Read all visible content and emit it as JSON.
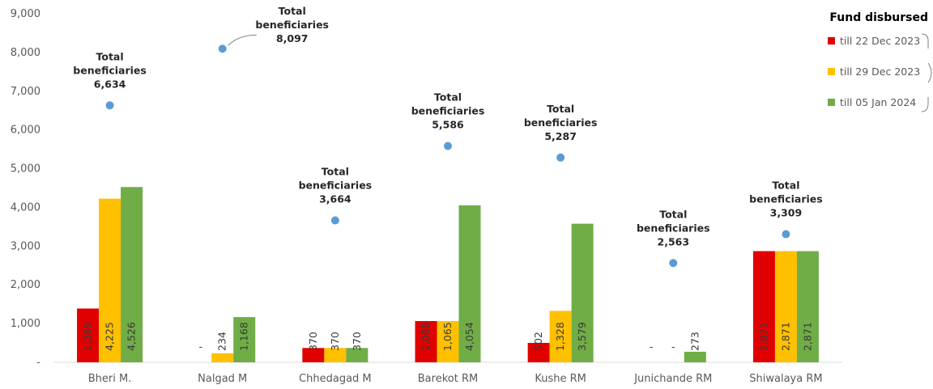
{
  "chart_data": {
    "type": "bar",
    "categories": [
      "Bheri M.",
      "Nalgad M",
      "Chhedagad M",
      "Barekot RM",
      "Kushe RM",
      "Junichande RM",
      "Shiwalaya RM"
    ],
    "series": [
      {
        "name": "till 22 Dec 2023",
        "color": "#e00000",
        "values": [
          1389,
          null,
          370,
          1065,
          502,
          null,
          2871
        ],
        "labels": [
          "1,389",
          "-",
          "370",
          "1,065",
          "502",
          "-",
          "2,871"
        ]
      },
      {
        "name": "till 29 Dec 2023",
        "color": "#ffc000",
        "values": [
          4225,
          234,
          370,
          1065,
          1328,
          null,
          2871
        ],
        "labels": [
          "4,225",
          "234",
          "370",
          "1,065",
          "1,328",
          "-",
          "2,871"
        ]
      },
      {
        "name": "till 05 Jan 2024",
        "color": "#70ad47",
        "values": [
          4526,
          1168,
          370,
          4054,
          3579,
          273,
          2871
        ],
        "labels": [
          "4,526",
          "1,168",
          "370",
          "4,054",
          "3,579",
          "273",
          "2,871"
        ]
      }
    ],
    "beneficiaries": {
      "label_line1": "Total",
      "label_line2": "beneficiaries",
      "color": "#5b9bd5",
      "values": [
        6634,
        8097,
        3664,
        5586,
        5287,
        2563,
        3309
      ],
      "labels": [
        "6,634",
        "8,097",
        "3,664",
        "5,586",
        "5,287",
        "2,563",
        "3,309"
      ]
    },
    "ylim": [
      0,
      9000
    ],
    "yticks": [
      0,
      1000,
      2000,
      3000,
      4000,
      5000,
      6000,
      7000,
      8000,
      9000
    ],
    "ytick_labels": [
      "-",
      "1,000",
      "2,000",
      "3,000",
      "4,000",
      "5,000",
      "6,000",
      "7,000",
      "8,000",
      "9,000"
    ],
    "legend_title": "Fund disbursed",
    "legend_position": "top-right",
    "grid": false
  }
}
